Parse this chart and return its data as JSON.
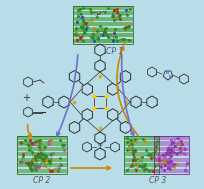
{
  "bg_color": "#b8dde8",
  "cp1_label": "CP 1",
  "cp2_label": "CP 2",
  "cp3_label": "CP 3",
  "arrow_color_brown": "#cc8800",
  "arrow_color_purple": "#7070cc",
  "label_fontsize": 5.5,
  "green_color": "#2a7a1a",
  "red_color": "#cc2200",
  "blue_color": "#2244cc",
  "purple_color": "#9933aa",
  "atom_color": "#404040"
}
